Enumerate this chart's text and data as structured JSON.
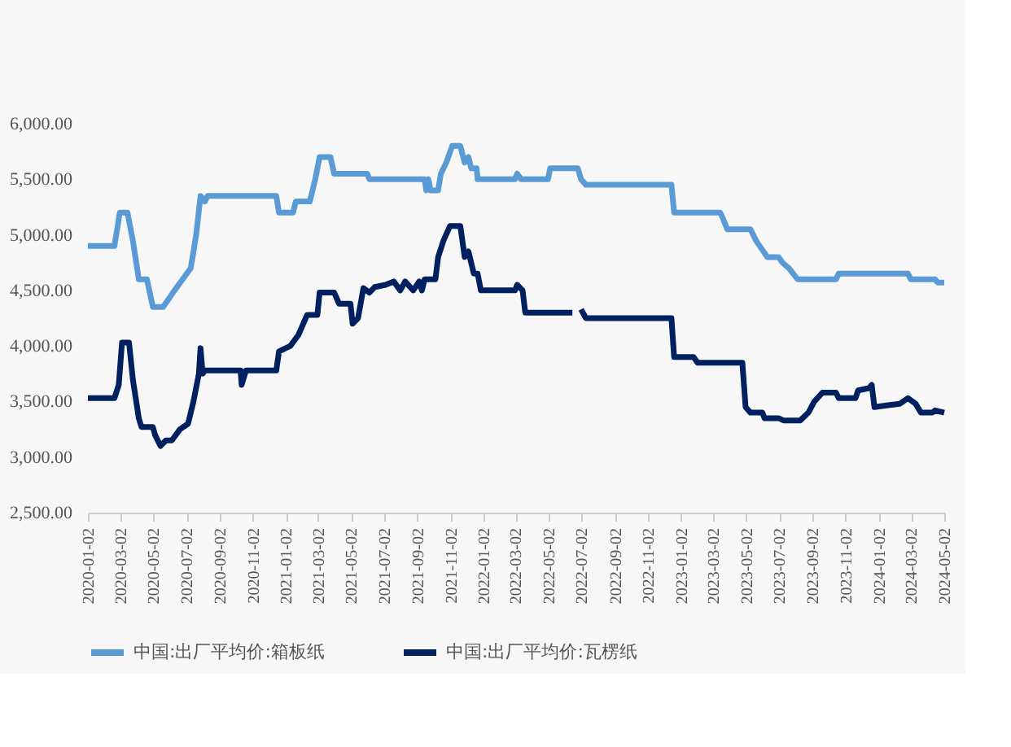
{
  "chart_data": {
    "type": "line",
    "ylim": [
      2500,
      6000
    ],
    "yticks": [
      {
        "value": 2500,
        "label": "2,500.00"
      },
      {
        "value": 3000,
        "label": "3,000.00"
      },
      {
        "value": 3500,
        "label": "3,500.00"
      },
      {
        "value": 4000,
        "label": "4,000.00"
      },
      {
        "value": 4500,
        "label": "4,500.00"
      },
      {
        "value": 5000,
        "label": "5,000.00"
      },
      {
        "value": 5500,
        "label": "5,500.00"
      },
      {
        "value": 6000,
        "label": "6,000.00"
      }
    ],
    "xlim": [
      "2020-01-02",
      "2024-05-02"
    ],
    "xticks": [
      "2020-01-02",
      "2020-03-02",
      "2020-05-02",
      "2020-07-02",
      "2020-09-02",
      "2020-11-02",
      "2021-01-02",
      "2021-03-02",
      "2021-05-02",
      "2021-07-02",
      "2021-09-02",
      "2021-11-02",
      "2022-01-02",
      "2022-03-02",
      "2022-05-02",
      "2022-07-02",
      "2022-09-02",
      "2022-11-02",
      "2023-01-02",
      "2023-03-02",
      "2023-05-02",
      "2023-07-02",
      "2023-09-02",
      "2023-11-02",
      "2024-01-02",
      "2024-03-02",
      "2024-05-02"
    ],
    "grid": false,
    "legend": "bottom",
    "line_style": "solid",
    "marker": "none",
    "series": [
      {
        "name": "中国:出厂平均价:箱板纸",
        "color": "#5b9bd5",
        "x": [
          "2020-01-02",
          "2020-02-20",
          "2020-03-01",
          "2020-03-15",
          "2020-03-25",
          "2020-04-05",
          "2020-04-20",
          "2020-05-01",
          "2020-05-20",
          "2020-06-10",
          "2020-06-25",
          "2020-07-10",
          "2020-07-20",
          "2020-07-28",
          "2020-08-05",
          "2020-08-10",
          "2020-12-15",
          "2020-12-20",
          "2021-01-15",
          "2021-01-20",
          "2021-02-15",
          "2021-02-25",
          "2021-03-05",
          "2021-03-25",
          "2021-04-01",
          "2021-06-01",
          "2021-06-05",
          "2021-09-15",
          "2021-09-18",
          "2021-09-22",
          "2021-09-26",
          "2021-10-10",
          "2021-10-15",
          "2021-10-25",
          "2021-11-05",
          "2021-11-20",
          "2021-11-28",
          "2021-12-05",
          "2021-12-10",
          "2021-12-20",
          "2021-12-22",
          "2022-03-01",
          "2022-03-05",
          "2022-03-12",
          "2022-05-01",
          "2022-05-05",
          "2022-06-25",
          "2022-07-01",
          "2022-07-10",
          "2022-12-15",
          "2022-12-20",
          "2023-03-15",
          "2023-03-20",
          "2023-03-28",
          "2023-05-10",
          "2023-05-20",
          "2023-06-10",
          "2023-07-01",
          "2023-07-08",
          "2023-07-20",
          "2023-07-28",
          "2023-08-05",
          "2023-10-15",
          "2023-10-20",
          "2024-02-25",
          "2024-03-01",
          "2024-04-15",
          "2024-04-20",
          "2024-05-02"
        ],
        "values": [
          4900,
          4900,
          5200,
          5200,
          4950,
          4600,
          4600,
          4350,
          4350,
          4500,
          4600,
          4700,
          5000,
          5350,
          5300,
          5350,
          5350,
          5200,
          5200,
          5300,
          5300,
          5500,
          5700,
          5700,
          5550,
          5550,
          5500,
          5500,
          5400,
          5500,
          5400,
          5400,
          5550,
          5650,
          5800,
          5800,
          5650,
          5700,
          5600,
          5600,
          5500,
          5500,
          5550,
          5500,
          5500,
          5600,
          5600,
          5500,
          5450,
          5450,
          5200,
          5200,
          5150,
          5050,
          5050,
          4950,
          4800,
          4800,
          4750,
          4700,
          4650,
          4600,
          4600,
          4650,
          4650,
          4600,
          4600,
          4570,
          4570
        ]
      },
      {
        "name": "中国:出厂平均价:瓦楞纸",
        "color": "#002060",
        "x": [
          "2020-01-02",
          "2020-02-20",
          "2020-02-28",
          "2020-03-05",
          "2020-03-18",
          "2020-03-25",
          "2020-04-05",
          "2020-04-10",
          "2020-05-01",
          "2020-05-05",
          "2020-05-15",
          "2020-05-25",
          "2020-06-05",
          "2020-06-20",
          "2020-07-05",
          "2020-07-15",
          "2020-07-25",
          "2020-07-28",
          "2020-08-01",
          "2020-08-05",
          "2020-10-10",
          "2020-10-12",
          "2020-10-20",
          "2020-12-15",
          "2020-12-20",
          "2021-01-10",
          "2021-01-25",
          "2021-02-10",
          "2021-03-01",
          "2021-03-05",
          "2021-04-01",
          "2021-04-10",
          "2021-05-01",
          "2021-05-05",
          "2021-05-15",
          "2021-05-25",
          "2021-06-05",
          "2021-06-15",
          "2021-07-05",
          "2021-07-20",
          "2021-08-01",
          "2021-08-10",
          "2021-08-25",
          "2021-09-05",
          "2021-09-10",
          "2021-09-15",
          "2021-10-05",
          "2021-10-10",
          "2021-10-20",
          "2021-11-01",
          "2021-11-20",
          "2021-11-28",
          "2021-12-05",
          "2021-12-15",
          "2021-12-22",
          "2021-12-28",
          "2022-03-01",
          "2022-03-05",
          "2022-03-15",
          "2022-03-20",
          "2022-06-15",
          "2022-06-25",
          "2022-07-01",
          "2022-07-10",
          "2022-12-15",
          "2022-12-20",
          "2023-01-25",
          "2023-02-01",
          "2023-04-25",
          "2023-05-01",
          "2023-05-10",
          "2023-06-01",
          "2023-06-05",
          "2023-07-01",
          "2023-07-10",
          "2023-08-10",
          "2023-08-25",
          "2023-09-05",
          "2023-09-20",
          "2023-10-15",
          "2023-10-20",
          "2023-11-20",
          "2023-11-25",
          "2023-12-15",
          "2023-12-20",
          "2023-12-25",
          "2024-01-25",
          "2024-02-10",
          "2024-02-25",
          "2024-03-10",
          "2024-03-20",
          "2024-04-10",
          "2024-04-15",
          "2024-05-02"
        ],
        "values": [
          3530,
          3530,
          3650,
          4030,
          4030,
          3700,
          3350,
          3270,
          3270,
          3200,
          3100,
          3150,
          3150,
          3250,
          3300,
          3500,
          3750,
          3980,
          3750,
          3780,
          3780,
          3650,
          3780,
          3780,
          3950,
          4000,
          4100,
          4280,
          4280,
          4480,
          4480,
          4380,
          4380,
          4200,
          4250,
          4520,
          4480,
          4530,
          4550,
          4580,
          4500,
          4580,
          4500,
          4580,
          4500,
          4600,
          4600,
          4800,
          4950,
          5080,
          5080,
          4800,
          4850,
          4650,
          4650,
          4500,
          4500,
          4550,
          4500,
          4300,
          4300,
          null,
          4330,
          4250,
          4250,
          3900,
          3900,
          3850,
          3850,
          3450,
          3400,
          3400,
          3350,
          3350,
          3330,
          3330,
          3400,
          3500,
          3580,
          3580,
          3530,
          3530,
          3600,
          3620,
          3650,
          3450,
          3470,
          3480,
          3530,
          3480,
          3400,
          3400,
          3420,
          3400
        ]
      }
    ]
  }
}
